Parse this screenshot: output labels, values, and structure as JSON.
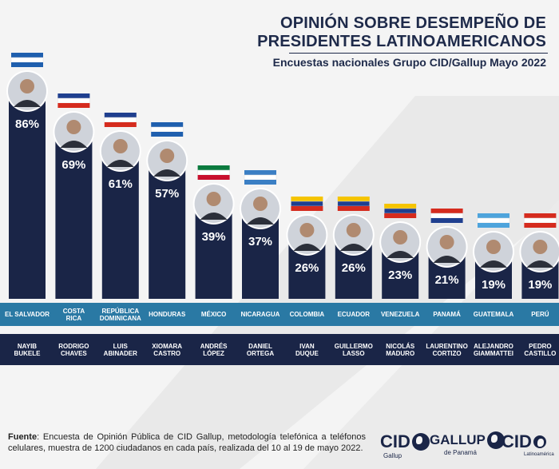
{
  "header": {
    "title_line1": "OPINIÓN SOBRE DESEMPEÑO DE",
    "title_line2": "PRESIDENTES LATINOAMERICANOS",
    "subtitle": "Encuestas nacionales Grupo CID/Gallup Mayo 2022"
  },
  "chart_data": {
    "type": "bar",
    "title": "OPINIÓN SOBRE DESEMPEÑO DE PRESIDENTES LATINOAMERICANOS",
    "subtitle": "Encuestas nacionales Grupo CID/Gallup Mayo 2022",
    "categories": [
      "EL SALVADOR",
      "COSTA RICA",
      "REPÚBLICA DOMINICANA",
      "HONDURAS",
      "MÉXICO",
      "NICARAGUA",
      "COLOMBIA",
      "ECUADOR",
      "VENEZUELA",
      "PANAMÁ",
      "GUATEMALA",
      "PERÚ"
    ],
    "presidents": [
      "NAYIB BUKELE",
      "RODRIGO CHAVES",
      "LUIS ABINADER",
      "XIOMARA CASTRO",
      "ANDRÉS LÓPEZ",
      "DANIEL ORTEGA",
      "IVAN DUQUE",
      "GUILLERMO LASSO",
      "NICOLÁS MADURO",
      "LAURENTINO CORTIZO",
      "ALEJANDRO GIAMMATTEI",
      "PEDRO CASTILLO"
    ],
    "values": [
      86,
      69,
      61,
      57,
      39,
      37,
      26,
      26,
      23,
      21,
      19,
      19
    ],
    "labels": [
      "86%",
      "69%",
      "61%",
      "57%",
      "39%",
      "37%",
      "26%",
      "26%",
      "23%",
      "21%",
      "19%",
      "19%"
    ],
    "ylim": [
      0,
      100
    ],
    "bar_color": "#1a2547",
    "label_color": "#ffffff"
  },
  "country_rows": [
    [
      "EL SALVADOR"
    ],
    [
      "COSTA",
      "RICA"
    ],
    [
      "REPÚBLICA",
      "DOMINICANA"
    ],
    [
      "HONDURAS"
    ],
    [
      "MÉXICO"
    ],
    [
      "NICARAGUA"
    ],
    [
      "COLOMBIA"
    ],
    [
      "ECUADOR"
    ],
    [
      "VENEZUELA"
    ],
    [
      "PANAMÁ"
    ],
    [
      "GUATEMALA"
    ],
    [
      "PERÚ"
    ]
  ],
  "name_rows": [
    [
      "NAYIB",
      "BUKELE"
    ],
    [
      "RODRIGO",
      "CHAVES"
    ],
    [
      "LUIS",
      "ABINADER"
    ],
    [
      "XIOMARA",
      "CASTRO"
    ],
    [
      "ANDRÉS",
      "LÓPEZ"
    ],
    [
      "DANIEL",
      "ORTEGA"
    ],
    [
      "IVAN",
      "DUQUE"
    ],
    [
      "GUILLERMO",
      "LASSO"
    ],
    [
      "NICOLÁS",
      "MADURO"
    ],
    [
      "LAURENTINO",
      "CORTIZO"
    ],
    [
      "ALEJANDRO",
      "GIAMMATTEI"
    ],
    [
      "PEDRO",
      "CASTILLO"
    ]
  ],
  "flag_colors": [
    [
      "#1f5fae",
      "#ffffff",
      "#1f5fae"
    ],
    [
      "#1f3f8f",
      "#ffffff",
      "#d52b1e"
    ],
    [
      "#1f3f8f",
      "#ffffff",
      "#d52b1e"
    ],
    [
      "#1f5fae",
      "#ffffff",
      "#1f5fae"
    ],
    [
      "#0a7a3e",
      "#ffffff",
      "#c8102e"
    ],
    [
      "#3b7fc4",
      "#ffffff",
      "#3b7fc4"
    ],
    [
      "#f5c400",
      "#1f3f8f",
      "#d52b1e"
    ],
    [
      "#f5c400",
      "#1f3f8f",
      "#d52b1e"
    ],
    [
      "#f5c400",
      "#1f3f8f",
      "#d52b1e"
    ],
    [
      "#d52b1e",
      "#ffffff",
      "#1f3f8f"
    ],
    [
      "#4ea4dc",
      "#ffffff",
      "#4ea4dc"
    ],
    [
      "#d52b1e",
      "#ffffff",
      "#d52b1e"
    ]
  ],
  "footer": {
    "source_label": "Fuente",
    "source_text": ": Encuesta de Opinión Pública de CID Gallup, metodología telefónica a teléfonos celulares, muestra de 1200 ciudadanos en cada país, realizada del 10 al 19 de mayo 2022.",
    "logo1_main": "CID",
    "logo1_sub": "Gallup",
    "logo2_main": "GALLUP",
    "logo2_sub": "de Panamá",
    "logo3_main": "CID",
    "logo3_sub": "Latinoamérica"
  }
}
